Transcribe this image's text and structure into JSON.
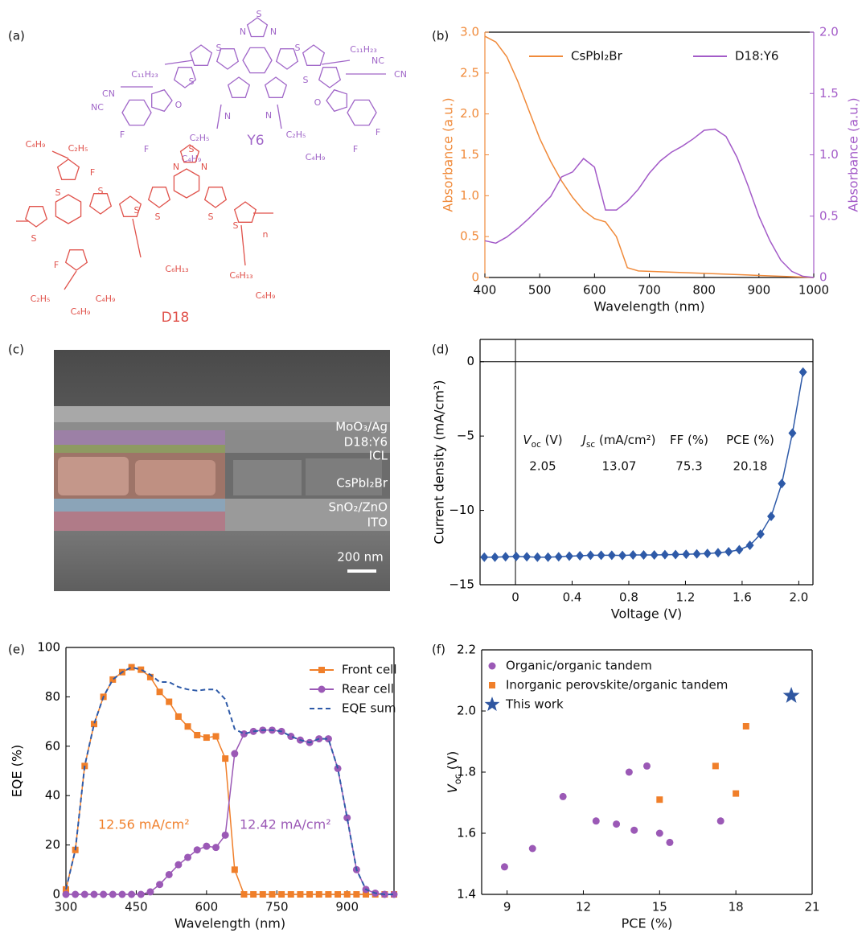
{
  "panel_a": {
    "label": "(a)",
    "molecules": [
      {
        "name": "Y6",
        "color": "#a066c8",
        "atoms": [
          "S",
          "N",
          "N",
          "S",
          "S",
          "C₁₁H₂₃",
          "C₁₁H₂₃",
          "S",
          "S",
          "N",
          "N",
          "CN",
          "NC",
          "NC",
          "CN",
          "O",
          "O",
          "C₂H₅",
          "C₄H₉",
          "C₂H₅",
          "C₄H₉",
          "F",
          "F",
          "F",
          "F"
        ]
      },
      {
        "name": "D18",
        "color": "#e0524b",
        "atoms": [
          "C₄H₉",
          "C₂H₅",
          "F",
          "S",
          "S",
          "S",
          "S",
          "S",
          "N",
          "N",
          "S",
          "S",
          "S",
          "C₆H₁₃",
          "C₄H₉",
          "C₆H₁₃",
          "C₄H₉",
          "F",
          "C₂H₅",
          "C₄H₉",
          "n"
        ]
      }
    ]
  },
  "panel_c": {
    "label": "(c)",
    "layers": [
      "MoO₃/Ag",
      "D18:Y6",
      "ICL",
      "CsPbI₂Br",
      "SnO₂/ZnO",
      "ITO"
    ],
    "scale_bar": "200 nm"
  },
  "chart_data": [
    {
      "type": "line",
      "panel_label": "(b)",
      "xlabel": "Wavelength (nm)",
      "ylabel": "Absorbance (a.u.)",
      "y2label": "Absorbance (a.u.)",
      "axis_colors": true,
      "legend": "top",
      "x": [
        400,
        420,
        440,
        460,
        480,
        500,
        520,
        540,
        560,
        580,
        600,
        620,
        640,
        660,
        680,
        700,
        720,
        740,
        760,
        780,
        800,
        820,
        840,
        860,
        880,
        900,
        920,
        940,
        960,
        980,
        1000
      ],
      "xlim": [
        400,
        1000
      ],
      "xticks": [
        400,
        500,
        600,
        700,
        800,
        900,
        1000
      ],
      "ylim": [
        0,
        3
      ],
      "yticks": [
        0,
        0.5,
        {
          "value": 1,
          "label": "1.0"
        },
        1.5,
        {
          "value": 2,
          "label": "2.0"
        },
        2.5,
        {
          "value": 3,
          "label": "3.0"
        }
      ],
      "y2lim": [
        0,
        2
      ],
      "y2ticks": [
        0,
        0.5,
        {
          "value": 1,
          "label": "1.0"
        },
        1.5,
        {
          "value": 2,
          "label": "2.0"
        }
      ],
      "series": [
        {
          "name": "CsPbI₂Br",
          "color": "#f08a3a",
          "values": [
            2.95,
            2.88,
            2.7,
            2.4,
            2.05,
            1.7,
            1.42,
            1.18,
            0.98,
            0.82,
            0.72,
            0.68,
            0.5,
            0.12,
            0.08,
            0.075,
            0.07,
            0.065,
            0.06,
            0.055,
            0.05,
            0.045,
            0.04,
            0.035,
            0.03,
            0.025,
            0.02,
            0.015,
            0.01,
            0.005,
            0
          ]
        },
        {
          "name": "D18:Y6",
          "color": "#a35bc8",
          "axis": "y2",
          "values": [
            0.3,
            0.28,
            0.33,
            0.4,
            0.48,
            0.57,
            0.66,
            0.82,
            0.86,
            0.97,
            0.9,
            0.55,
            0.55,
            0.62,
            0.72,
            0.85,
            0.95,
            1.02,
            1.07,
            1.13,
            1.2,
            1.21,
            1.15,
            0.98,
            0.75,
            0.5,
            0.3,
            0.14,
            0.05,
            0.01,
            0
          ]
        }
      ]
    },
    {
      "type": "line",
      "panel_label": "(d)",
      "xlabel": "Voltage (V)",
      "ylabel": "Current density (mA/cm²)",
      "origin_lines": true,
      "x": [
        -0.22,
        -0.145,
        -0.07,
        0.005,
        0.08,
        0.155,
        0.23,
        0.305,
        0.38,
        0.455,
        0.53,
        0.605,
        0.68,
        0.755,
        0.83,
        0.905,
        0.98,
        1.055,
        1.13,
        1.205,
        1.28,
        1.355,
        1.43,
        1.505,
        1.58,
        1.655,
        1.73,
        1.805,
        1.88,
        1.955,
        2.03
      ],
      "xlim": [
        -0.25,
        2.1
      ],
      "xticks": [
        0,
        0.4,
        0.8,
        1.2,
        1.6,
        {
          "value": 2,
          "label": "2.0"
        }
      ],
      "ylim": [
        -15,
        1.5
      ],
      "yticks": [
        {
          "value": -15,
          "label": "−15"
        },
        {
          "value": -10,
          "label": "−10"
        },
        {
          "value": -5,
          "label": "−5"
        },
        0
      ],
      "series": [
        {
          "color": "#2e5aa8",
          "marker": "diamond",
          "values": [
            -13.15,
            -13.15,
            -13.12,
            -13.1,
            -13.12,
            -13.15,
            -13.15,
            -13.12,
            -13.08,
            -13.05,
            -13.02,
            -13.02,
            -13.02,
            -13.03,
            -13,
            -13,
            -13,
            -12.98,
            -12.97,
            -12.95,
            -12.93,
            -12.9,
            -12.85,
            -12.78,
            -12.65,
            -12.35,
            -11.6,
            -10.4,
            -8.2,
            -4.8,
            -0.7
          ]
        }
      ],
      "table": {
        "headers": [
          [
            {
              "text": "V",
              "style": "italic"
            },
            {
              "text": "oc",
              "style": "sub"
            },
            {
              "text": " (V)"
            }
          ],
          [
            {
              "text": "J",
              "style": "italic"
            },
            {
              "text": "sc",
              "style": "sub"
            },
            {
              "text": " (mA/cm²)"
            }
          ],
          [
            {
              "text": "FF (%)"
            }
          ],
          [
            {
              "text": "PCE (%)"
            }
          ]
        ],
        "values": [
          2.05,
          13.07,
          75.3,
          20.18
        ]
      }
    },
    {
      "type": "line",
      "panel_label": "(e)",
      "xlabel": "Wavelength (nm)",
      "ylabel": "EQE (%)",
      "legend": "upper right",
      "x": [
        300,
        320,
        340,
        360,
        380,
        400,
        420,
        440,
        460,
        480,
        500,
        520,
        540,
        560,
        580,
        600,
        620,
        640,
        660,
        680,
        700,
        720,
        740,
        760,
        780,
        800,
        820,
        840,
        860,
        880,
        900,
        920,
        940,
        960,
        980,
        1000
      ],
      "xlim": [
        300,
        1000
      ],
      "xticks": [
        300,
        450,
        600,
        750,
        900
      ],
      "ylim": [
        0,
        100
      ],
      "yticks": [
        0,
        20,
        40,
        60,
        80,
        100
      ],
      "series": [
        {
          "name": "Front cell",
          "color": "#f07f2a",
          "marker": "square",
          "values": [
            2,
            18,
            52,
            69,
            80,
            87,
            90,
            92,
            91,
            88,
            82,
            78,
            72,
            68,
            64.5,
            63.5,
            64,
            55,
            10,
            0,
            0,
            0,
            0,
            0,
            0,
            0,
            0,
            0,
            0,
            0,
            0,
            0,
            0,
            0,
            0,
            0
          ]
        },
        {
          "name": "Rear cell",
          "color": "#9b59b6",
          "marker": "circle",
          "values": [
            0,
            0,
            0,
            0,
            0,
            0,
            0,
            0,
            0,
            1,
            4,
            8,
            12,
            15,
            18,
            19.5,
            19,
            24,
            57,
            65,
            66,
            66.5,
            66.5,
            66,
            64,
            62.5,
            61.5,
            63,
            63,
            51,
            31,
            10,
            2,
            0.5,
            0,
            0
          ]
        },
        {
          "name": "EQE sum",
          "color": "#2e5aa8",
          "dash": true,
          "values": [
            2,
            18,
            52,
            69,
            80,
            87,
            90,
            92,
            91,
            89,
            86,
            86,
            84,
            83,
            82.5,
            83,
            83,
            79,
            67,
            65,
            66,
            66.5,
            66.5,
            66,
            64,
            62.5,
            61.5,
            63,
            63,
            51,
            31,
            10,
            2,
            0.5,
            0,
            0
          ]
        }
      ],
      "annotations": [
        {
          "text": "12.56 mA/cm²",
          "color": "#f07f2a"
        },
        {
          "text": "12.42 mA/cm²",
          "color": "#9b59b6"
        }
      ]
    },
    {
      "type": "scatter",
      "panel_label": "(f)",
      "xlabel": "PCE (%)",
      "ylabel": [
        {
          "text": "V",
          "style": "italic"
        },
        {
          "text": "oc",
          "style": "sub"
        },
        {
          "text": " (V)"
        }
      ],
      "legend": "upper left",
      "xlim": [
        8,
        21
      ],
      "xticks": [
        9,
        12,
        15,
        18,
        21
      ],
      "ylim": [
        1.4,
        2.2
      ],
      "yticks": [
        1.4,
        1.6,
        1.8,
        {
          "value": 2,
          "label": "2.0"
        },
        2.2
      ],
      "series": [
        {
          "name": "Organic/organic tandem",
          "color": "#9b59b6",
          "marker": "circle",
          "x": [
            8.9,
            10,
            11.2,
            12.5,
            13.3,
            13.8,
            14,
            14.5,
            15,
            15.4,
            17.4
          ],
          "y": [
            1.49,
            1.55,
            1.72,
            1.64,
            1.63,
            1.8,
            1.61,
            1.82,
            1.6,
            1.57,
            1.64
          ]
        },
        {
          "name": "Inorganic perovskite/organic tandem",
          "color": "#f07f2a",
          "marker": "square",
          "x": [
            15,
            17.2,
            18,
            18.4
          ],
          "y": [
            1.71,
            1.82,
            1.73,
            1.95
          ]
        },
        {
          "name": "This work",
          "color": "#2f56a0",
          "marker": "star",
          "x": [
            20.18
          ],
          "y": [
            2.05
          ]
        }
      ]
    }
  ]
}
